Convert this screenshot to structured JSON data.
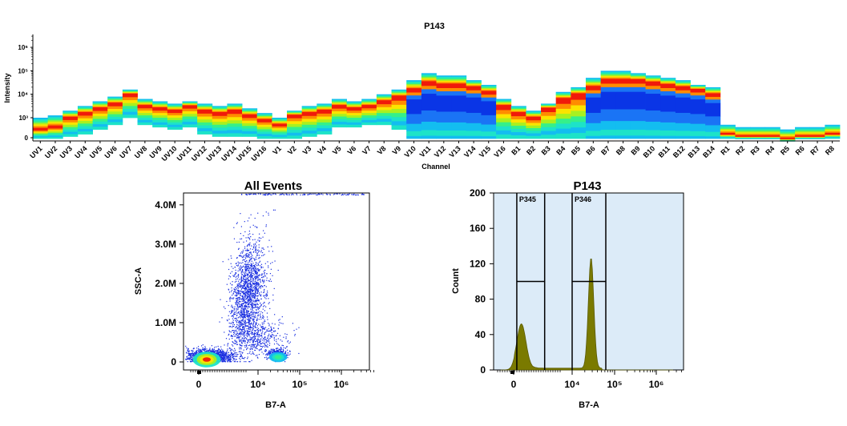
{
  "chart_data": [
    {
      "type": "heatmap",
      "title": "P143",
      "xlabel": "Channel",
      "ylabel": "Intensity",
      "yticks": [
        "0",
        "10³",
        "10⁴",
        "10⁵",
        "10⁶"
      ],
      "categories": [
        "UV1",
        "UV2",
        "UV3",
        "UV4",
        "UV5",
        "UV6",
        "UV7",
        "UV8",
        "UV9",
        "UV10",
        "UV11",
        "UV12",
        "UV13",
        "UV14",
        "UV15",
        "UV16",
        "V1",
        "V2",
        "V3",
        "V4",
        "V5",
        "V6",
        "V7",
        "V8",
        "V9",
        "V10",
        "V11",
        "V12",
        "V13",
        "V14",
        "V15",
        "V16",
        "B1",
        "B2",
        "B3",
        "B4",
        "B5",
        "B6",
        "B7",
        "B8",
        "B9",
        "B10",
        "B11",
        "B12",
        "B13",
        "B14",
        "R1",
        "R2",
        "R3",
        "R4",
        "R5",
        "R6",
        "R7",
        "R8"
      ],
      "peak_log10": [
        2.5,
        2.6,
        3.0,
        3.2,
        3.4,
        3.6,
        4.0,
        3.5,
        3.4,
        3.3,
        3.5,
        3.3,
        3.2,
        3.3,
        3.1,
        2.9,
        2.7,
        3.1,
        3.2,
        3.3,
        3.5,
        3.4,
        3.5,
        3.7,
        3.9,
        4.2,
        4.5,
        4.4,
        4.4,
        4.3,
        4.1,
        3.5,
        3.2,
        3.0,
        3.4,
        3.8,
        4.0,
        4.3,
        4.6,
        4.6,
        4.6,
        4.5,
        4.4,
        4.3,
        4.2,
        4.0,
        2.3,
        2.2,
        2.2,
        2.2,
        2.1,
        2.2,
        2.2,
        2.3
      ],
      "top_log10": [
        3.0,
        3.1,
        3.3,
        3.5,
        3.7,
        3.9,
        4.2,
        3.8,
        3.7,
        3.6,
        3.7,
        3.6,
        3.5,
        3.6,
        3.4,
        3.2,
        3.0,
        3.3,
        3.5,
        3.6,
        3.8,
        3.7,
        3.8,
        4.0,
        4.2,
        4.6,
        4.9,
        4.8,
        4.8,
        4.6,
        4.4,
        3.8,
        3.5,
        3.3,
        3.6,
        4.1,
        4.3,
        4.7,
        5.0,
        5.0,
        4.9,
        4.8,
        4.7,
        4.6,
        4.4,
        4.3,
        2.7,
        2.6,
        2.6,
        2.6,
        2.5,
        2.6,
        2.6,
        2.7
      ],
      "bottom_log10": [
        2.0,
        2.0,
        2.2,
        2.3,
        2.5,
        2.7,
        3.0,
        2.7,
        2.6,
        2.5,
        2.6,
        2.3,
        2.2,
        2.2,
        2.2,
        2.0,
        1.9,
        2.1,
        2.2,
        2.3,
        2.6,
        2.6,
        2.7,
        2.7,
        2.5,
        2.0,
        1.9,
        1.9,
        1.9,
        1.9,
        2.0,
        2.0,
        1.9,
        1.9,
        2.0,
        2.0,
        2.0,
        2.0,
        1.9,
        1.9,
        1.9,
        1.9,
        1.9,
        2.0,
        2.0,
        2.0,
        1.9,
        1.9,
        1.9,
        1.9,
        1.9,
        1.9,
        1.9,
        1.9
      ],
      "blue_core": [
        0,
        0,
        0,
        0,
        0,
        0,
        0,
        0,
        0,
        0,
        0,
        0,
        0,
        0,
        0,
        0,
        0,
        0,
        0,
        0,
        0,
        0,
        0,
        0,
        0,
        1,
        1,
        1,
        1,
        1,
        1,
        0,
        0,
        0,
        0,
        0,
        0,
        1,
        1,
        1,
        1,
        1,
        1,
        1,
        1,
        1,
        0,
        0,
        0,
        0,
        0,
        0,
        0,
        0
      ]
    },
    {
      "type": "scatter",
      "title": "All Events",
      "xlabel": "B7-A",
      "ylabel": "SSC-A",
      "xticks": [
        "0",
        "10⁴",
        "10⁵",
        "10⁶"
      ],
      "yticks": [
        "0",
        "1.0M",
        "2.0M",
        "3.0M",
        "4.0M"
      ],
      "ylim": [
        0,
        4200000
      ],
      "populations": [
        {
          "center_x_log": 2.6,
          "center_y": 150000,
          "spread_x": 0.35,
          "spread_y": 90000,
          "n": 1400
        },
        {
          "center_x_log": 3.7,
          "center_y": 1800000,
          "spread_x": 0.25,
          "spread_y": 650000,
          "n": 1600
        },
        {
          "center_x_log": 4.45,
          "center_y": 200000,
          "spread_x": 0.12,
          "spread_y": 70000,
          "n": 400
        },
        {
          "center_x_log": 3.9,
          "center_y": 700000,
          "spread_x": 0.35,
          "spread_y": 250000,
          "n": 500
        }
      ]
    },
    {
      "type": "area",
      "title": "P143",
      "xlabel": "B7-A",
      "ylabel": "Count",
      "xticks": [
        "0",
        "10⁴",
        "10⁵",
        "10⁶"
      ],
      "yticks": [
        "0",
        "40",
        "80",
        "120",
        "160",
        "200"
      ],
      "ylim": [
        0,
        200
      ],
      "series": [
        {
          "peak_x_log": 2.5,
          "peak_count": 50
        },
        {
          "peak_x_log": 4.45,
          "peak_count": 125
        }
      ],
      "gates": [
        {
          "name": "P345",
          "x_from_log": 2.3,
          "x_to_log": 3.3,
          "level": 100
        },
        {
          "name": "P346",
          "x_from_log": 4.0,
          "x_to_log": 4.8,
          "level": 100
        }
      ]
    }
  ],
  "colors": {
    "heat_ramp": [
      "#0a35e6",
      "#1a74f5",
      "#13bdf0",
      "#1de3c8",
      "#35f08a",
      "#a8f020",
      "#fbe400",
      "#ff8c00",
      "#f01a0a"
    ],
    "scatter_dot": "#1a2fe0",
    "hist_fill": "#7a7a00",
    "gate_bg": "#dcebf8",
    "plot_bg": "#ffffff"
  }
}
